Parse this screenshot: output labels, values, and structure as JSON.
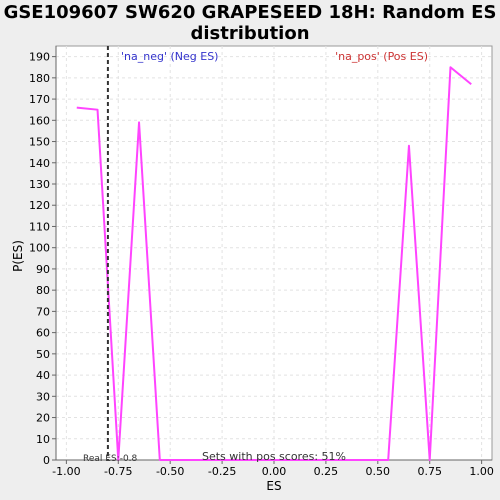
{
  "chart_data": {
    "type": "line",
    "title": "GSE109607 SW620 GRAPESEED 18H: Random ES distribution",
    "xlabel": "ES",
    "ylabel": "P(ES)",
    "xlim": [
      -1.05,
      1.05
    ],
    "ylim": [
      0,
      195
    ],
    "x_ticks": [
      -1.0,
      -0.75,
      -0.5,
      -0.25,
      0.0,
      0.25,
      0.5,
      0.75,
      1.0
    ],
    "x_tick_labels": [
      "-1.00",
      "-0.75",
      "-0.50",
      "-0.25",
      "0.00",
      "0.25",
      "0.50",
      "0.75",
      "1.00"
    ],
    "y_ticks": [
      0,
      10,
      20,
      30,
      40,
      50,
      60,
      70,
      80,
      90,
      100,
      110,
      120,
      130,
      140,
      150,
      160,
      170,
      180,
      190
    ],
    "grid": true,
    "series": [
      {
        "color": "#ff44ff",
        "x": [
          -0.95,
          -0.85,
          -0.75,
          -0.65,
          -0.55,
          0.55,
          0.65,
          0.75,
          0.85,
          0.95
        ],
        "y": [
          166,
          165,
          0,
          159,
          0,
          0,
          148,
          0,
          185,
          177
        ]
      }
    ],
    "real_es": {
      "value": -0.8,
      "label": "Real ES:-0.8"
    },
    "legend": {
      "neg_label": "'na_neg' (Neg ES)",
      "pos_label": "'na_pos' (Pos ES)",
      "neg_color": "#3333cc",
      "pos_color": "#cc3333"
    },
    "annotation": "Sets with pos scores: 51%"
  }
}
